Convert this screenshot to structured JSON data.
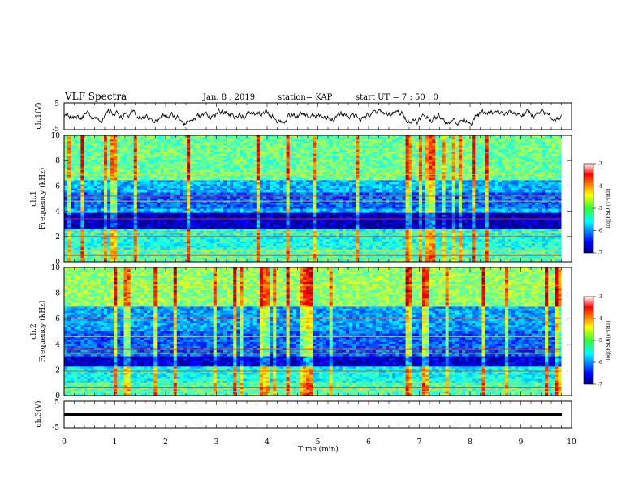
{
  "header": {
    "title": "VLF Spectra",
    "date": "Jan. 8 , 2019",
    "station": "station= KAP",
    "start": "start UT = 7 : 50 : 0"
  },
  "chart_data": [
    {
      "type": "line",
      "name": "ch1-voltage",
      "ylabel": "ch.1(V)",
      "ylim": [
        -5,
        5
      ],
      "yticks": [
        "5",
        "-5"
      ],
      "xlim": [
        0,
        10
      ]
    },
    {
      "type": "heatmap",
      "name": "ch1-spectrogram",
      "ylabel": "ch.1\nFrequency (kHz)",
      "ylabel_lines": [
        "ch.1",
        "Frequency (kHz)"
      ],
      "ylim": [
        0,
        10
      ],
      "yticks": [
        "0",
        "2",
        "4",
        "6",
        "8",
        "10"
      ],
      "xlim": [
        0,
        10
      ],
      "data_end_min": 9.8,
      "colorbar": {
        "label": "log(PSD)(V²/Hz)",
        "range": [
          -7,
          -3
        ],
        "ticks": [
          "-3",
          "-4",
          "-5",
          "-6",
          "-7"
        ]
      }
    },
    {
      "type": "heatmap",
      "name": "ch2-spectrogram",
      "ylabel": "ch.2\nFrequency (kHz)",
      "ylabel_lines": [
        "ch.2",
        "Frequency (kHz)"
      ],
      "ylim": [
        0,
        10
      ],
      "yticks": [
        "0",
        "2",
        "4",
        "6",
        "8",
        "10"
      ],
      "xlim": [
        0,
        10
      ],
      "data_end_min": 9.8,
      "colorbar": {
        "label": "log(PSD)(V²/Hz)",
        "range": [
          -7,
          -3
        ],
        "ticks": [
          "-3",
          "-4",
          "-5",
          "-6",
          "-7"
        ]
      }
    },
    {
      "type": "line",
      "name": "ch3-voltage",
      "ylabel": "ch.3(V)",
      "ylim": [
        -5,
        5
      ],
      "yticks": [
        "5",
        "-5"
      ],
      "xlim": [
        0,
        10
      ]
    }
  ],
  "xaxis": {
    "label": "Time (min)",
    "ticks": [
      "0",
      "1",
      "2",
      "3",
      "4",
      "5",
      "6",
      "7",
      "8",
      "9",
      "10"
    ]
  }
}
